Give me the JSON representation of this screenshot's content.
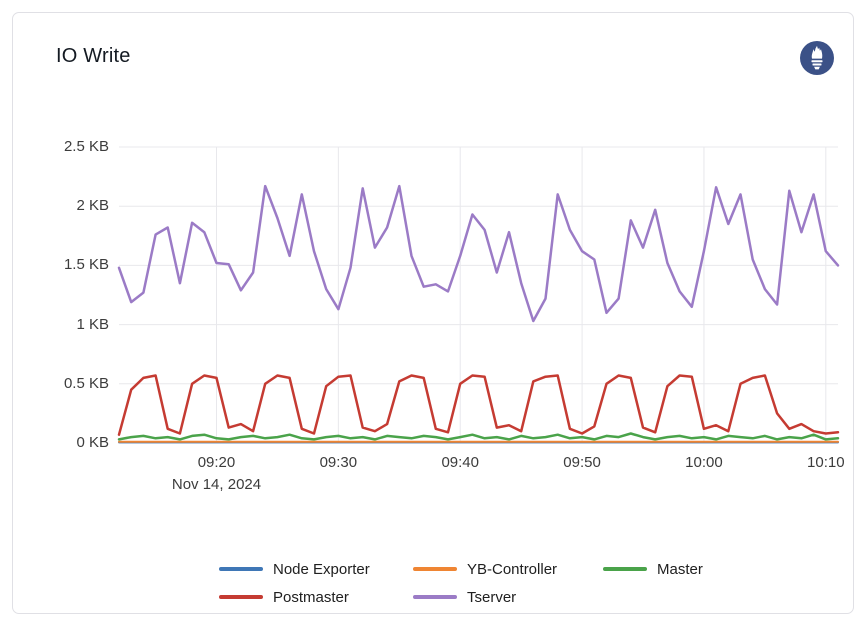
{
  "panel": {
    "title": "IO Write",
    "logo": {
      "name": "prometheus-icon",
      "circle_color": "#3b5187",
      "glyph_color": "#ffffff"
    }
  },
  "chart_data": {
    "type": "line",
    "title": "IO Write",
    "grid": true,
    "legend_position": "bottom-center",
    "x_axis": {
      "date_label": "Nov 14, 2024",
      "start_time": "09:12",
      "end_time": "10:11",
      "minutes_per_point": 1,
      "ticks": [
        {
          "t": 8,
          "label": "09:20"
        },
        {
          "t": 18,
          "label": "09:30"
        },
        {
          "t": 28,
          "label": "09:40"
        },
        {
          "t": 38,
          "label": "09:50"
        },
        {
          "t": 48,
          "label": "10:00"
        },
        {
          "t": 58,
          "label": "10:10"
        }
      ]
    },
    "y_axis": {
      "unit": "KB",
      "max": 2.5,
      "min": 0,
      "ticks": [
        {
          "v": 0,
          "label": "0 KB"
        },
        {
          "v": 0.5,
          "label": "0.5 KB"
        },
        {
          "v": 1,
          "label": "1 KB"
        },
        {
          "v": 1.5,
          "label": "1.5 KB"
        },
        {
          "v": 2,
          "label": "2 KB"
        },
        {
          "v": 2.5,
          "label": "2.5 KB"
        }
      ]
    },
    "series": [
      {
        "name": "Node Exporter",
        "color": "#3f77b6",
        "width": 2,
        "values": [
          0.005,
          0.005,
          0.005,
          0.005,
          0.005,
          0.005,
          0.005,
          0.005,
          0.005,
          0.005,
          0.005,
          0.005,
          0.005,
          0.005,
          0.005,
          0.005,
          0.005,
          0.005,
          0.005,
          0.005,
          0.005,
          0.005,
          0.005,
          0.005,
          0.005,
          0.005,
          0.005,
          0.005,
          0.005,
          0.005,
          0.005,
          0.005,
          0.005,
          0.005,
          0.005,
          0.005,
          0.005,
          0.005,
          0.005,
          0.005,
          0.005,
          0.005,
          0.005,
          0.005,
          0.005,
          0.005,
          0.005,
          0.005,
          0.005,
          0.005,
          0.005,
          0.005,
          0.005,
          0.005,
          0.005,
          0.005,
          0.005,
          0.005,
          0.005,
          0.005
        ]
      },
      {
        "name": "YB-Controller",
        "color": "#ef8533",
        "width": 2,
        "values": [
          0.01,
          0.01,
          0.01,
          0.01,
          0.01,
          0.01,
          0.01,
          0.01,
          0.01,
          0.01,
          0.01,
          0.01,
          0.01,
          0.01,
          0.01,
          0.01,
          0.01,
          0.01,
          0.01,
          0.01,
          0.01,
          0.01,
          0.01,
          0.01,
          0.01,
          0.01,
          0.01,
          0.01,
          0.01,
          0.01,
          0.01,
          0.01,
          0.01,
          0.01,
          0.01,
          0.01,
          0.01,
          0.01,
          0.01,
          0.01,
          0.01,
          0.01,
          0.01,
          0.01,
          0.01,
          0.01,
          0.01,
          0.01,
          0.01,
          0.01,
          0.01,
          0.01,
          0.01,
          0.01,
          0.01,
          0.01,
          0.01,
          0.01,
          0.01,
          0.01
        ]
      },
      {
        "name": "Master",
        "color": "#4aa34a",
        "width": 2.5,
        "values": [
          0.03,
          0.05,
          0.06,
          0.04,
          0.05,
          0.03,
          0.06,
          0.07,
          0.04,
          0.03,
          0.05,
          0.06,
          0.04,
          0.05,
          0.07,
          0.04,
          0.03,
          0.05,
          0.06,
          0.04,
          0.05,
          0.03,
          0.06,
          0.05,
          0.04,
          0.06,
          0.05,
          0.03,
          0.05,
          0.07,
          0.04,
          0.05,
          0.03,
          0.06,
          0.04,
          0.05,
          0.07,
          0.04,
          0.05,
          0.03,
          0.06,
          0.05,
          0.08,
          0.05,
          0.03,
          0.05,
          0.06,
          0.04,
          0.05,
          0.03,
          0.06,
          0.05,
          0.04,
          0.06,
          0.03,
          0.05,
          0.04,
          0.07,
          0.03,
          0.04
        ]
      },
      {
        "name": "Postmaster",
        "color": "#c53b32",
        "width": 2.5,
        "values": [
          0.07,
          0.45,
          0.55,
          0.57,
          0.12,
          0.08,
          0.5,
          0.57,
          0.55,
          0.13,
          0.16,
          0.1,
          0.5,
          0.57,
          0.55,
          0.12,
          0.08,
          0.48,
          0.56,
          0.57,
          0.13,
          0.1,
          0.16,
          0.52,
          0.57,
          0.55,
          0.12,
          0.09,
          0.5,
          0.57,
          0.56,
          0.13,
          0.15,
          0.1,
          0.52,
          0.56,
          0.57,
          0.12,
          0.08,
          0.14,
          0.5,
          0.57,
          0.55,
          0.13,
          0.09,
          0.48,
          0.57,
          0.56,
          0.12,
          0.15,
          0.1,
          0.5,
          0.55,
          0.57,
          0.25,
          0.12,
          0.16,
          0.1,
          0.08,
          0.09
        ]
      },
      {
        "name": "Tserver",
        "color": "#9b7bc6",
        "width": 2.5,
        "values": [
          1.48,
          1.19,
          1.27,
          1.76,
          1.82,
          1.35,
          1.86,
          1.78,
          1.52,
          1.51,
          1.29,
          1.44,
          2.17,
          1.9,
          1.58,
          2.1,
          1.62,
          1.3,
          1.13,
          1.48,
          2.15,
          1.65,
          1.82,
          2.17,
          1.58,
          1.32,
          1.34,
          1.28,
          1.58,
          1.93,
          1.8,
          1.44,
          1.78,
          1.35,
          1.03,
          1.22,
          2.1,
          1.8,
          1.62,
          1.55,
          1.1,
          1.22,
          1.88,
          1.65,
          1.97,
          1.52,
          1.28,
          1.15,
          1.62,
          2.16,
          1.85,
          2.1,
          1.55,
          1.3,
          1.17,
          2.13,
          1.78,
          2.1,
          1.62,
          1.5
        ]
      }
    ]
  }
}
